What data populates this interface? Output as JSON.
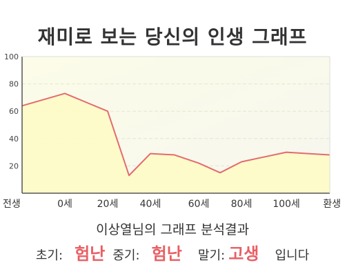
{
  "title": "재미로 보는 당신의 인생 그래프",
  "subtitle": "이상열님의 그래프 분석결과",
  "result": {
    "early_label": "초기:",
    "early_value": "험난",
    "mid_label": "중기:",
    "mid_value": "험난",
    "late_label": "말기:",
    "late_value": "고생",
    "suffix": "입니다"
  },
  "colors": {
    "line": "#e46a6f",
    "fill": "#fdfbc7",
    "axis": "#555555",
    "grid": "#e6e6cf",
    "accent": "#e85f64"
  },
  "chart_data": {
    "type": "area",
    "x_ticks": [
      "전생",
      "0세",
      "20세",
      "40세",
      "60세",
      "80세",
      "100세",
      "환생"
    ],
    "y_ticks": [
      20,
      40,
      60,
      80,
      100
    ],
    "ylim": [
      0,
      100
    ],
    "grid": true,
    "points": [
      {
        "x": "전생",
        "y": 64
      },
      {
        "x": "0세",
        "y": 73
      },
      {
        "x": "20세",
        "y": 60
      },
      {
        "x": "30세",
        "y": 13
      },
      {
        "x": "40세",
        "y": 29
      },
      {
        "x": "50세",
        "y": 28
      },
      {
        "x": "60세",
        "y": 22
      },
      {
        "x": "70세",
        "y": 15
      },
      {
        "x": "80세",
        "y": 23
      },
      {
        "x": "100세",
        "y": 30
      },
      {
        "x": "110세",
        "y": 29
      },
      {
        "x": "환생",
        "y": 28
      }
    ]
  }
}
